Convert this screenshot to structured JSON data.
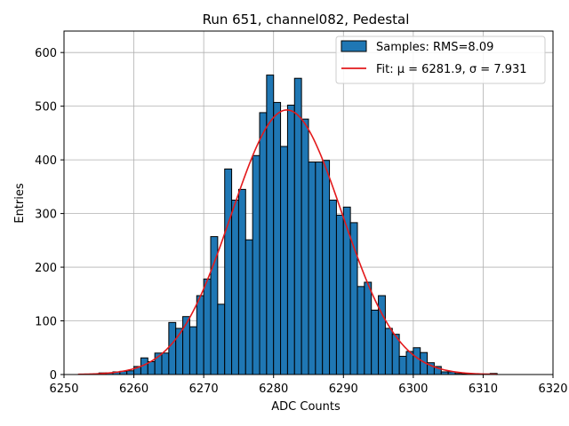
{
  "chart_data": {
    "type": "bar",
    "title": "Run 651, channel082, Pedestal",
    "xlabel": "ADC Counts",
    "ylabel": "Entries",
    "xlim": [
      6250,
      6320
    ],
    "ylim": [
      0,
      640
    ],
    "xticks": [
      6250,
      6260,
      6270,
      6280,
      6290,
      6300,
      6310,
      6320
    ],
    "yticks": [
      0,
      100,
      200,
      300,
      400,
      500,
      600
    ],
    "grid": true,
    "legend_position": "top-right",
    "histogram": {
      "name": "Samples: RMS=8.09",
      "bin_width": 1,
      "bin_starts": [
        6255,
        6256,
        6257,
        6258,
        6259,
        6260,
        6261,
        6262,
        6263,
        6264,
        6265,
        6266,
        6267,
        6268,
        6269,
        6270,
        6271,
        6272,
        6273,
        6274,
        6275,
        6276,
        6277,
        6278,
        6279,
        6280,
        6281,
        6282,
        6283,
        6284,
        6285,
        6286,
        6287,
        6288,
        6289,
        6290,
        6291,
        6292,
        6293,
        6294,
        6295,
        6296,
        6297,
        6298,
        6299,
        6300,
        6301,
        6302,
        6303,
        6304,
        6305,
        6306,
        6307,
        6308,
        6309,
        6310,
        6311
      ],
      "values": [
        3,
        3,
        5,
        6,
        7,
        15,
        31,
        24,
        40,
        40,
        97,
        86,
        108,
        89,
        147,
        178,
        257,
        131,
        383,
        325,
        345,
        251,
        408,
        488,
        558,
        507,
        425,
        502,
        552,
        476,
        396,
        396,
        399,
        325,
        297,
        312,
        283,
        164,
        172,
        120,
        147,
        86,
        75,
        34,
        43,
        50,
        41,
        22,
        15,
        5,
        5,
        2,
        1,
        1,
        1,
        1,
        2
      ],
      "color": "#1f77b4",
      "edge_color": "#000000"
    },
    "fit": {
      "name": "Fit: μ = 6281.9, σ = 7.931",
      "mu": 6281.9,
      "sigma": 7.931,
      "amplitude": 493,
      "x_range": [
        6252,
        6312
      ],
      "color": "#e31a1c"
    }
  }
}
